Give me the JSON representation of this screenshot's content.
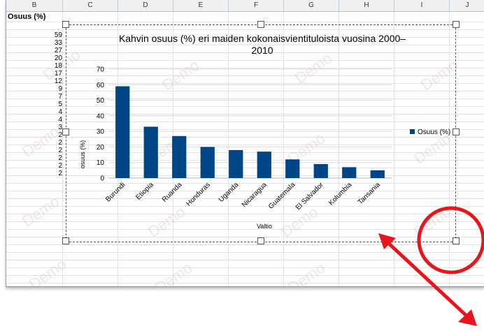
{
  "columns": [
    "B",
    "C",
    "D",
    "E",
    "F",
    "G",
    "H",
    "I",
    "J"
  ],
  "cell_header": "Osuus (%)",
  "cell_values": [
    "59",
    "33",
    "27",
    "20",
    "18",
    "17",
    "12",
    "9",
    "7",
    "5",
    "4",
    "4",
    "3",
    "2",
    "2",
    "2",
    "2",
    "2",
    "2"
  ],
  "watermark": "Demo",
  "chart_data": {
    "type": "bar",
    "title": "Kahvin osuus (%) eri maiden kokonaisvientituloista vuosina 2000–2010",
    "title_lines": [
      "Kahvin osuus (%) eri maiden kokonaisvientituloista vuosina 2000–",
      "2010"
    ],
    "categories": [
      "Burundi",
      "Etiopia",
      "Ruanda",
      "Honduras",
      "Uganda",
      "Nicaragua",
      "Guatemala",
      "El Salvador",
      "Kolumbia",
      "Tansania"
    ],
    "values": [
      59,
      33,
      27,
      20,
      18,
      17,
      12,
      9,
      7,
      5
    ],
    "series": [
      {
        "name": "Osuus (%)",
        "values": [
          59,
          33,
          27,
          20,
          18,
          17,
          12,
          9,
          7,
          5
        ]
      }
    ],
    "xlabel": "Valtio",
    "ylabel": "osuus (%)",
    "ylim": [
      0,
      70
    ],
    "yticks": [
      "0",
      "10",
      "20",
      "30",
      "40",
      "50",
      "60",
      "70"
    ],
    "grid": true,
    "legend": "right",
    "color": "#004586"
  },
  "annotation_color": "#e8161b"
}
